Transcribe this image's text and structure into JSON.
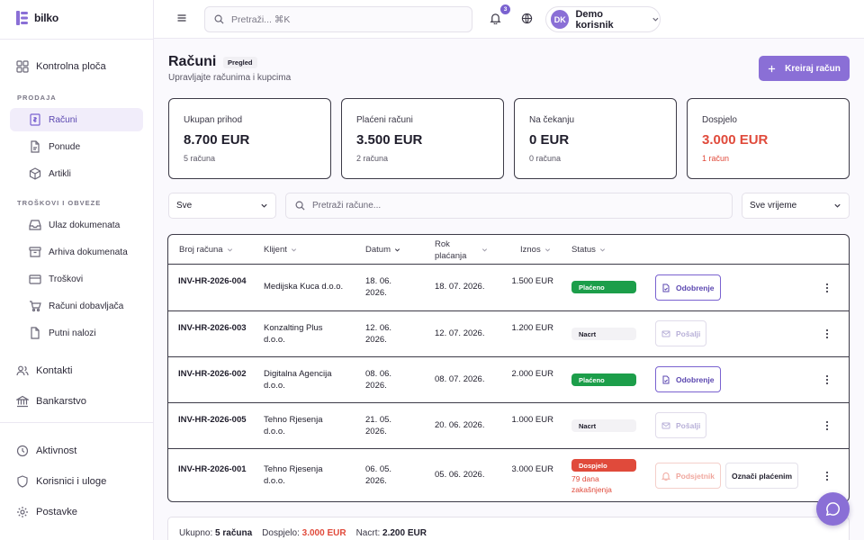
{
  "app": {
    "name": "bilko"
  },
  "topbar": {
    "search_placeholder": "Pretraži... ⌘K",
    "notifications_count": "3",
    "user_initials": "DK",
    "user_name": "Demo korisnik"
  },
  "sidebar": {
    "dashboard": "Kontrolna ploča",
    "section_sales": "PRODAJA",
    "sales_items": [
      "Računi",
      "Ponude",
      "Artikli"
    ],
    "section_costs": "TROŠKOVI I OBVEZE",
    "cost_items": [
      "Ulaz dokumenata",
      "Arhiva dokumenata",
      "Troškovi",
      "Računi dobavljača",
      "Putni nalozi"
    ],
    "contacts": "Kontakti",
    "banking": "Bankarstvo",
    "activity": "Aktivnost",
    "users_roles": "Korisnici i uloge",
    "settings": "Postavke"
  },
  "header": {
    "title": "Računi",
    "badge": "Pregled",
    "subtitle": "Upravljajte računima i kupcima",
    "create_button": "Kreiraj račun"
  },
  "stats": [
    {
      "label": "Ukupan prihod",
      "value": "8.700 EUR",
      "sub": "5 računa"
    },
    {
      "label": "Plaćeni računi",
      "value": "3.500 EUR",
      "sub": "2 računa"
    },
    {
      "label": "Na čekanju",
      "value": "0 EUR",
      "sub": "0 računa"
    },
    {
      "label": "Dospjelo",
      "value": "3.000 EUR",
      "sub": "1 račun"
    }
  ],
  "filters": {
    "status_value": "Sve",
    "search_placeholder": "Pretraži račune...",
    "period_value": "Sve vrijeme"
  },
  "table": {
    "headers": [
      "Broj računa",
      "Klijent",
      "Datum",
      "Rok plaćanja",
      "Iznos",
      "Status"
    ],
    "rows": [
      {
        "number": "INV-HR-2026-004",
        "client": "Medijska Kuca d.o.o.",
        "date": "18. 06. 2026.",
        "due": "18. 07. 2026.",
        "amount": "1.500 EUR",
        "status": "Plaćeno",
        "status_color": "green",
        "action": "Odobrenje",
        "action_style": "purple"
      },
      {
        "number": "INV-HR-2026-003",
        "client": "Konzalting Plus d.o.o.",
        "date": "12. 06. 2026.",
        "due": "12. 07. 2026.",
        "amount": "1.200 EUR",
        "status": "Nacrt",
        "status_color": "gray",
        "action": "Pošalji",
        "action_style": "faded"
      },
      {
        "number": "INV-HR-2026-002",
        "client": "Digitalna Agencija d.o.o.",
        "date": "08. 06. 2026.",
        "due": "08. 07. 2026.",
        "amount": "2.000 EUR",
        "status": "Plaćeno",
        "status_color": "green",
        "action": "Odobrenje",
        "action_style": "purple"
      },
      {
        "number": "INV-HR-2026-005",
        "client": "Tehno Rjesenja d.o.o.",
        "date": "21. 05. 2026.",
        "due": "20. 06. 2026.",
        "amount": "1.000 EUR",
        "status": "Nacrt",
        "status_color": "gray",
        "action": "Pošalji",
        "action_style": "faded"
      },
      {
        "number": "INV-HR-2026-001",
        "client": "Tehno Rjesenja d.o.o.",
        "date": "06. 05. 2026.",
        "due": "05. 06. 2026.",
        "amount": "3.000 EUR",
        "status": "Dospjelo",
        "status_color": "red",
        "late_note": "79 dana zakašnjenja",
        "action": "Podsjetnik",
        "action_style": "faded-red",
        "action2": "Označi plaćenim"
      }
    ]
  },
  "summary": {
    "total_label": "Ukupno:",
    "total_value": "5 računa",
    "overdue_label": "Dospjelo:",
    "overdue_value": "3.000 EUR",
    "draft_label": "Nacrt:",
    "draft_value": "2.200 EUR"
  },
  "colors": {
    "accent": "#8a6fd6",
    "success": "#1c9e4a",
    "danger": "#e04a3b"
  }
}
